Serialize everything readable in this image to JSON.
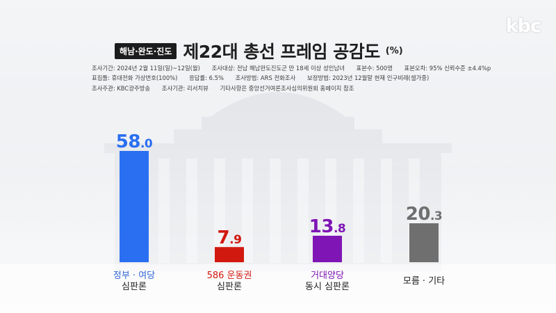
{
  "broadcaster": {
    "logo": "kbc"
  },
  "header": {
    "region_tag": "해남·완도·진도",
    "title": "제22대 총선 프레임 공감도",
    "unit": "(%)"
  },
  "survey_meta": {
    "rows": [
      [
        "조사기간: 2024년 2월 11일(일)~12일(월)",
        "조사대상: 전남 해남완도진도군 만 18세 이상 성인남녀",
        "표본수: 500명",
        "표본오차: 95% 신뢰수준 ±4.4%p"
      ],
      [
        "표집틀: 휴대전화 가상번호(100%)",
        "응답률: 6.5%",
        "조사방법: ARS 전화조사",
        "보정방법: 2023년 12월말 현재 인구비례(셀가중)"
      ],
      [
        "조사주관: KBC광주방송",
        "조사기관: 리서치뷰",
        "기타사항은 중앙선거여론조사심의위원회 홈페이지 참조"
      ]
    ]
  },
  "chart_data": {
    "type": "bar",
    "title": "제22대 총선 프레임 공감도",
    "unit": "(%)",
    "categories": [
      {
        "line1": "정부 · 여당",
        "line2": "심판론",
        "color": "#2a6ff2",
        "line1_color": "#2f66d8"
      },
      {
        "line1": "586 운동권",
        "line2": "심판론",
        "color": "#d2190f",
        "line1_color": "#d2190f"
      },
      {
        "line1": "거대양당",
        "line2": "동시 심판론",
        "color": "#7f15b5",
        "line1_color": "#7f15b5"
      },
      {
        "line1": "모름 · 기타",
        "line2": "",
        "color": "#6f6f6f",
        "line1_color": "#1e1e1e"
      }
    ],
    "values": [
      58.0,
      7.9,
      13.8,
      20.3
    ],
    "value_labels": [
      {
        "int": "58",
        "dec": ".0"
      },
      {
        "int": "7",
        "dec": ".9"
      },
      {
        "int": "13",
        "dec": ".8"
      },
      {
        "int": "20",
        "dec": ".3"
      }
    ],
    "ylim": [
      0,
      58.0
    ],
    "grid": false,
    "legend": "none"
  }
}
